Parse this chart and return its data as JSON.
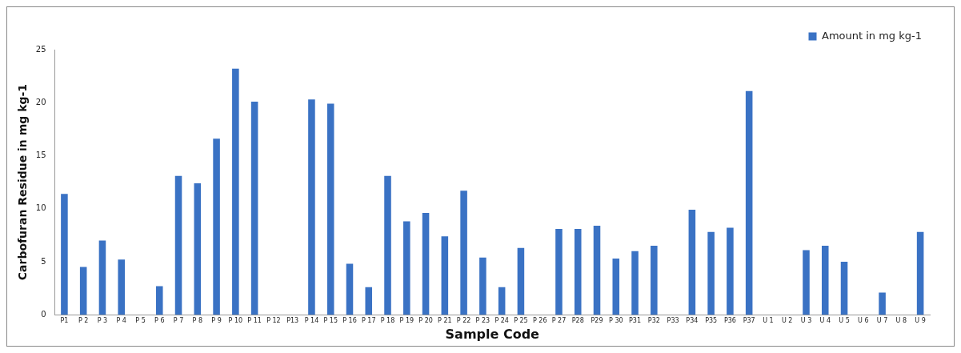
{
  "chart_data": {
    "type": "bar",
    "xlabel": "Sample Code",
    "ylabel": "Carbofuran Residue in mg kg-1",
    "categories": [
      "P1",
      "P 2",
      "P 3",
      "P 4",
      "P 5",
      "P 6",
      "P 7",
      "P 8",
      "P 9",
      "P 10",
      "P 11",
      "P 12",
      "P13",
      "P 14",
      "P 15",
      "P 16",
      "P 17",
      "P 18",
      "P 19",
      "P 20",
      "P 21",
      "P 22",
      "P 23",
      "P 24",
      "P 25",
      "P 26",
      "P 27",
      "P28",
      "P29",
      "P 30",
      "P31",
      "P32",
      "P33",
      "P34",
      "P35",
      "P36",
      "P37",
      "U 1",
      "U 2",
      "U 3",
      "U 4",
      "U 5",
      "U 6",
      "U 7",
      "U 8",
      "U 9"
    ],
    "series": [
      {
        "name": "Amount in mg kg-1",
        "color": "#3a72c4",
        "values": [
          11.4,
          4.5,
          7.0,
          5.2,
          0,
          2.7,
          13.1,
          12.4,
          16.6,
          23.2,
          20.1,
          0,
          0,
          20.3,
          19.9,
          4.8,
          2.6,
          13.1,
          8.8,
          9.6,
          7.4,
          11.7,
          5.4,
          2.6,
          6.3,
          0,
          8.1,
          8.1,
          8.4,
          5.3,
          6.0,
          6.5,
          0,
          9.9,
          7.8,
          8.2,
          21.1,
          0,
          0,
          6.1,
          6.5,
          5.0,
          0,
          2.1,
          0,
          7.8
        ]
      }
    ],
    "ylim": [
      0,
      25
    ],
    "yticks": [
      0,
      5,
      10,
      15,
      20,
      25
    ],
    "grid": false,
    "legend": "top right"
  }
}
